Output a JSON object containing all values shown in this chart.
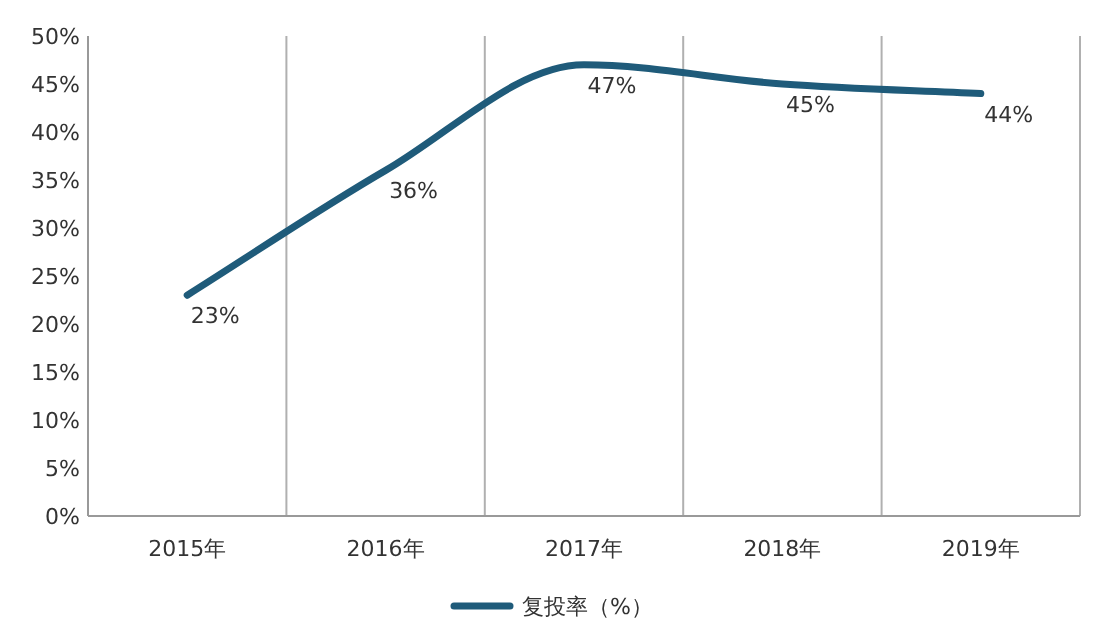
{
  "chart_data": {
    "type": "line",
    "categories": [
      "2015年",
      "2016年",
      "2017年",
      "2018年",
      "2019年"
    ],
    "series": [
      {
        "name": "复投率（%）",
        "color": "#1f5b7a",
        "values": [
          23,
          36,
          47,
          45,
          44
        ],
        "value_labels": [
          "23%",
          "36%",
          "47%",
          "45%",
          "44%"
        ]
      }
    ],
    "ylim": [
      0,
      50
    ],
    "yticks": [
      {
        "value": 0,
        "label": "0%"
      },
      {
        "value": 5,
        "label": "5%"
      },
      {
        "value": 10,
        "label": "10%"
      },
      {
        "value": 15,
        "label": "15%"
      },
      {
        "value": 20,
        "label": "20%"
      },
      {
        "value": 25,
        "label": "25%"
      },
      {
        "value": 30,
        "label": "30%"
      },
      {
        "value": 35,
        "label": "35%"
      },
      {
        "value": 40,
        "label": "40%"
      },
      {
        "value": 45,
        "label": "45%"
      },
      {
        "value": 50,
        "label": "50%"
      }
    ],
    "grid": "x",
    "legend": "bottom",
    "marker": "none",
    "line_style": "solid"
  }
}
